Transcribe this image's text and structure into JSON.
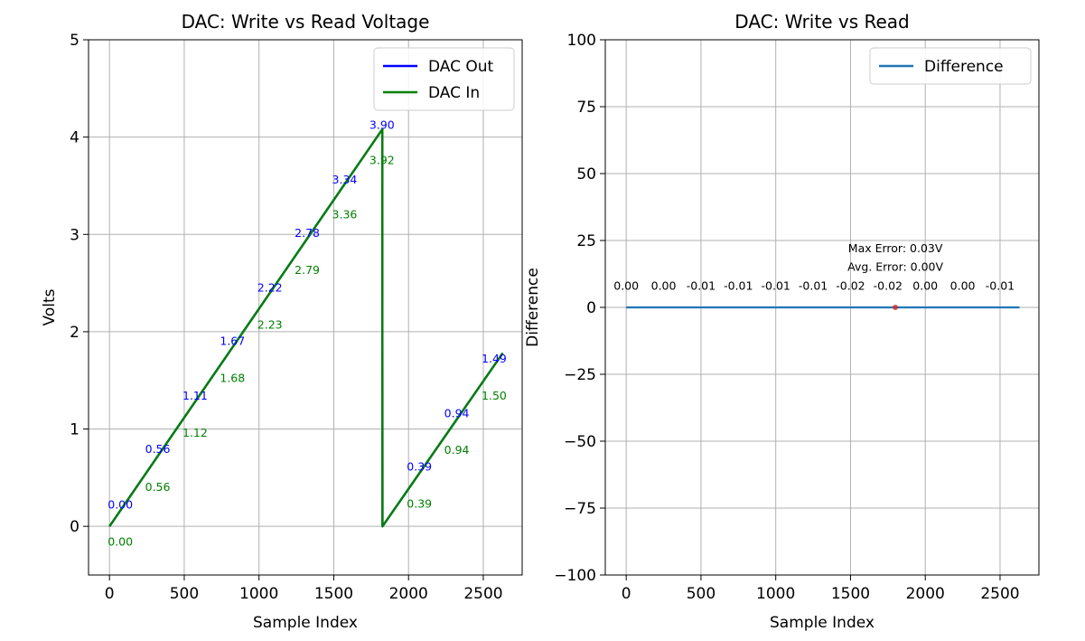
{
  "chart_data": [
    {
      "type": "line",
      "title": "DAC: Write vs Read Voltage",
      "xlabel": "Sample Index",
      "ylabel": "Volts",
      "xlim": [
        -140,
        2760
      ],
      "ylim": [
        -0.5,
        5
      ],
      "xticks": [
        0,
        500,
        1000,
        1500,
        2000,
        2500
      ],
      "xtick_labels": [
        "0",
        "500",
        "1000",
        "1500",
        "2000",
        "2500"
      ],
      "yticks": [
        0,
        1,
        2,
        3,
        4,
        5
      ],
      "ytick_labels": [
        "0",
        "1",
        "2",
        "3",
        "4",
        "5"
      ],
      "grid": true,
      "legend_position": "upper right",
      "series": [
        {
          "name": "DAC Out",
          "color": "#0000ff",
          "x": [
            0,
            1825,
            1826,
            2630
          ],
          "y": [
            0.0,
            4.08,
            0.0,
            1.78
          ]
        },
        {
          "name": "DAC In",
          "color": "#008000",
          "x": [
            0,
            1825,
            1826,
            2630
          ],
          "y": [
            0.0,
            4.08,
            0.0,
            1.78
          ]
        }
      ],
      "annotations": [
        {
          "text": "0.00",
          "x": 0,
          "y": 0.22,
          "color": "#0000ff"
        },
        {
          "text": "0.56",
          "x": 250,
          "y": 0.79,
          "color": "#0000ff"
        },
        {
          "text": "1.11",
          "x": 500,
          "y": 1.34,
          "color": "#0000ff"
        },
        {
          "text": "1.67",
          "x": 750,
          "y": 1.9,
          "color": "#0000ff"
        },
        {
          "text": "2.22",
          "x": 1000,
          "y": 2.45,
          "color": "#0000ff"
        },
        {
          "text": "2.78",
          "x": 1250,
          "y": 3.01,
          "color": "#0000ff"
        },
        {
          "text": "3.34",
          "x": 1500,
          "y": 3.56,
          "color": "#0000ff"
        },
        {
          "text": "3.90",
          "x": 1750,
          "y": 4.12,
          "color": "#0000ff"
        },
        {
          "text": "0.39",
          "x": 2000,
          "y": 0.61,
          "color": "#0000ff"
        },
        {
          "text": "0.94",
          "x": 2250,
          "y": 1.16,
          "color": "#0000ff"
        },
        {
          "text": "1.49",
          "x": 2500,
          "y": 1.72,
          "color": "#0000ff"
        },
        {
          "text": "0.00",
          "x": 0,
          "y": -0.16,
          "color": "#008000"
        },
        {
          "text": "0.56",
          "x": 250,
          "y": 0.4,
          "color": "#008000"
        },
        {
          "text": "1.12",
          "x": 500,
          "y": 0.96,
          "color": "#008000"
        },
        {
          "text": "1.68",
          "x": 750,
          "y": 1.52,
          "color": "#008000"
        },
        {
          "text": "2.23",
          "x": 1000,
          "y": 2.07,
          "color": "#008000"
        },
        {
          "text": "2.79",
          "x": 1250,
          "y": 2.63,
          "color": "#008000"
        },
        {
          "text": "3.36",
          "x": 1500,
          "y": 3.2,
          "color": "#008000"
        },
        {
          "text": "3.92",
          "x": 1750,
          "y": 3.76,
          "color": "#008000"
        },
        {
          "text": "0.39",
          "x": 2000,
          "y": 0.23,
          "color": "#008000"
        },
        {
          "text": "0.94",
          "x": 2250,
          "y": 0.78,
          "color": "#008000"
        },
        {
          "text": "1.50",
          "x": 2500,
          "y": 1.34,
          "color": "#008000"
        }
      ]
    },
    {
      "type": "line",
      "title": "DAC: Write vs Read",
      "xlabel": "Sample Index",
      "ylabel": "Difference",
      "xlim": [
        -140,
        2760
      ],
      "ylim": [
        -100,
        100
      ],
      "xticks": [
        0,
        500,
        1000,
        1500,
        2000,
        2500
      ],
      "xtick_labels": [
        "0",
        "500",
        "1000",
        "1500",
        "2000",
        "2500"
      ],
      "yticks": [
        -100,
        -75,
        -50,
        -25,
        0,
        25,
        50,
        75,
        100
      ],
      "ytick_labels": [
        "−100",
        "−75",
        "−50",
        "−25",
        "0",
        "25",
        "50",
        "75",
        "100"
      ],
      "grid": true,
      "legend_position": "upper right",
      "series": [
        {
          "name": "Difference",
          "color": "#1f77b4",
          "x": [
            0,
            2630
          ],
          "y": [
            0,
            0
          ]
        }
      ],
      "marker": {
        "x": 1800,
        "y": 0,
        "color": "#d62728"
      },
      "value_labels": [
        {
          "text": "0.00",
          "x": 0
        },
        {
          "text": "0.00",
          "x": 250
        },
        {
          "text": "-0.01",
          "x": 500
        },
        {
          "text": "-0.01",
          "x": 750
        },
        {
          "text": "-0.01",
          "x": 1000
        },
        {
          "text": "-0.01",
          "x": 1250
        },
        {
          "text": "-0.02",
          "x": 1500
        },
        {
          "text": "-0.02",
          "x": 1750
        },
        {
          "text": "0.00",
          "x": 2000
        },
        {
          "text": "0.00",
          "x": 2250
        },
        {
          "text": "-0.01",
          "x": 2500
        }
      ],
      "value_labels_y": 8,
      "stats": [
        {
          "text": "Max Error: 0.03V",
          "x": 1800,
          "y": 22
        },
        {
          "text": "Avg. Error: 0.00V",
          "x": 1800,
          "y": 15
        }
      ]
    }
  ]
}
